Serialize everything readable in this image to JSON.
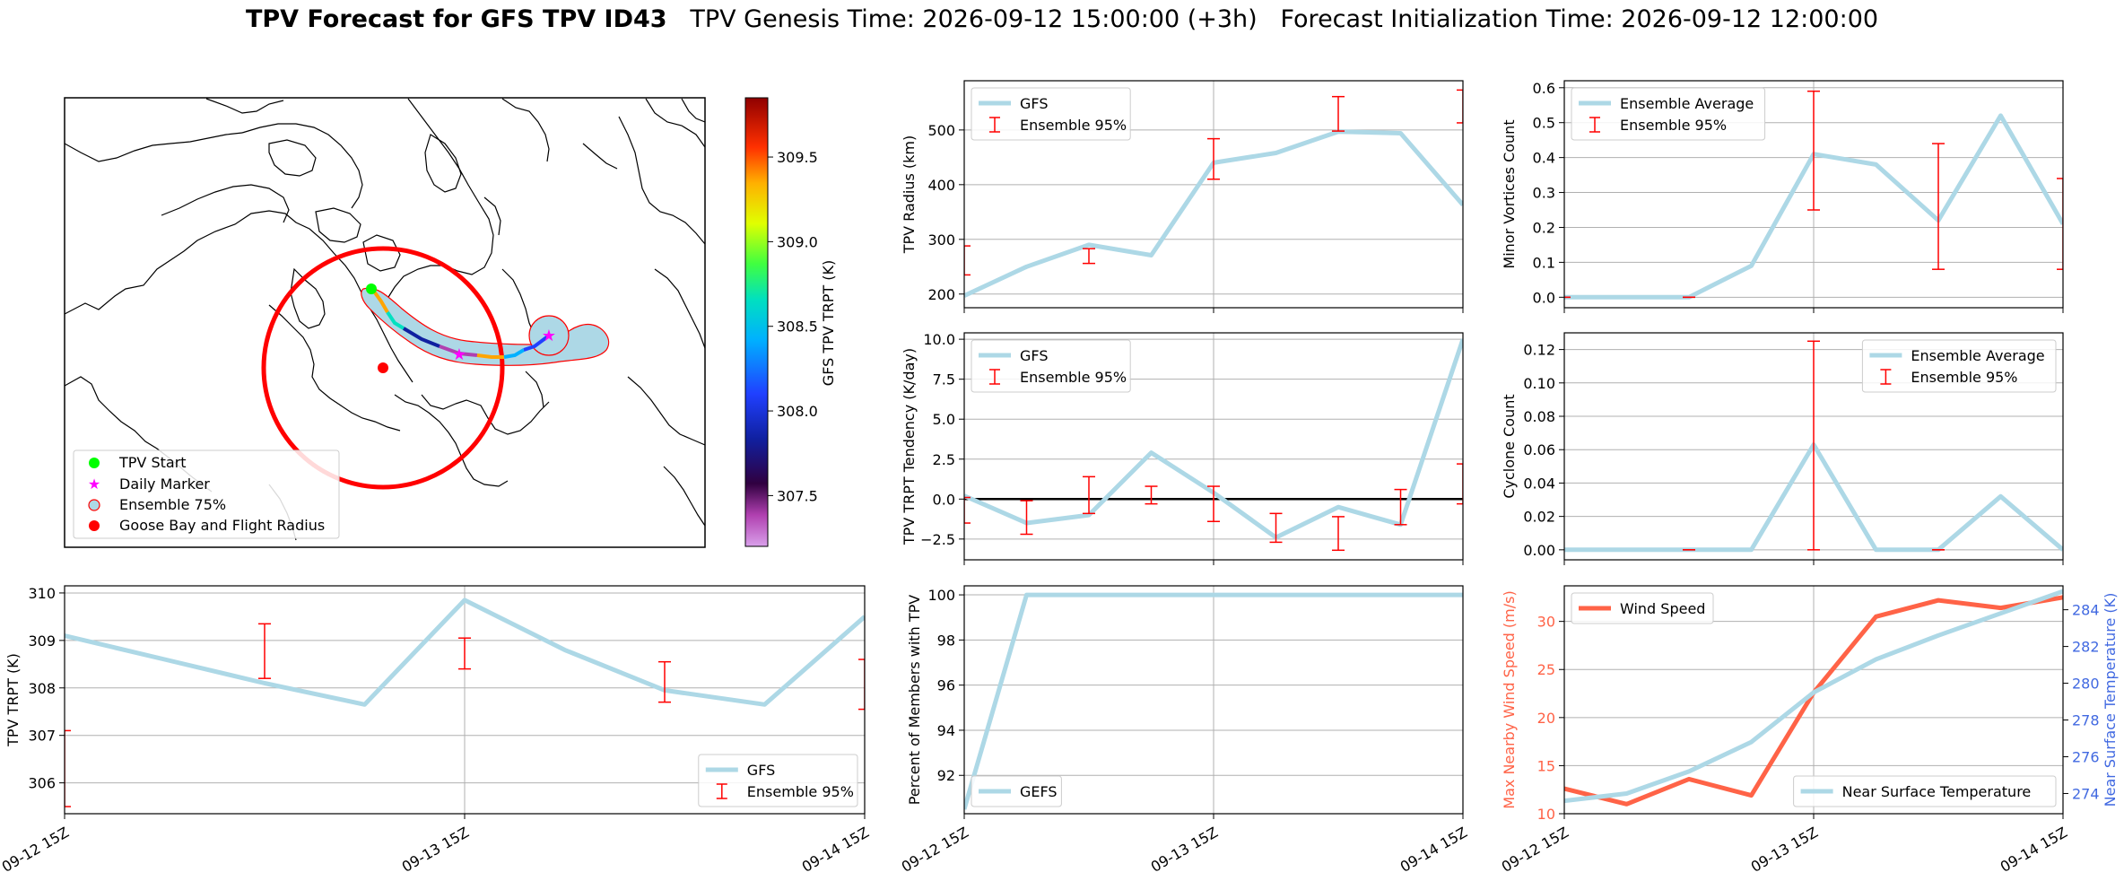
{
  "title": {
    "bold": "TPV Forecast for GFS TPV ID43",
    "genesis": "TPV Genesis Time: 2026-09-12 15:00:00 (+3h)",
    "init": "Forecast Initialization Time: 2026-09-12 12:00:00"
  },
  "colors": {
    "line": "#add8e6",
    "error": "#ff0000",
    "wind": "#ff6347",
    "temp_axis": "#4169e1",
    "grid": "#b0b0b0"
  },
  "map": {
    "colorbar_label": "GFS TPV TRPT (K)",
    "colorbar_ticks": [
      "307.5",
      "308.0",
      "308.5",
      "309.0",
      "309.5"
    ],
    "colorbar_range": [
      307.2,
      309.85
    ],
    "legend": [
      "TPV Start",
      "Daily Marker",
      "Ensemble 75%",
      "Goose Bay and Flight Radius"
    ]
  },
  "x_tick_labels": [
    "09-12 15Z",
    "09-13 15Z",
    "09-14 15Z"
  ],
  "chart_data": [
    {
      "id": "radius",
      "type": "line",
      "ylabel": "TPV Radius (km)",
      "ylim": [
        175,
        590
      ],
      "yticks": [
        200,
        300,
        400,
        500
      ],
      "legend": [
        "GFS",
        "Ensemble 95%"
      ],
      "legend_loc": "upper-left",
      "x": [
        0,
        1,
        2,
        3,
        4,
        5,
        6,
        7,
        8
      ],
      "series": [
        {
          "name": "GFS",
          "values": [
            197,
            250,
            290,
            271,
            440,
            458,
            497,
            494,
            363
          ]
        }
      ],
      "errorbars": [
        {
          "x": 0,
          "lo": 235,
          "hi": 288
        },
        {
          "x": 2,
          "lo": 256,
          "hi": 283
        },
        {
          "x": 4,
          "lo": 410,
          "hi": 484
        },
        {
          "x": 6,
          "lo": 498,
          "hi": 561
        },
        {
          "x": 8,
          "lo": 513,
          "hi": 573
        }
      ]
    },
    {
      "id": "minor",
      "type": "line",
      "ylabel": "Minor Vortices Count",
      "ylim": [
        -0.03,
        0.62
      ],
      "yticks": [
        "0.0",
        "0.1",
        "0.2",
        "0.3",
        "0.4",
        "0.5",
        "0.6"
      ],
      "legend": [
        "Ensemble Average",
        "Ensemble 95%"
      ],
      "legend_loc": "upper-left",
      "x": [
        0,
        1,
        2,
        3,
        4,
        5,
        6,
        7,
        8
      ],
      "series": [
        {
          "name": "Ensemble Average",
          "values": [
            0,
            0,
            0,
            0.09,
            0.41,
            0.38,
            0.22,
            0.52,
            0.21
          ]
        }
      ],
      "errorbars": [
        {
          "x": 0,
          "lo": 0,
          "hi": 0
        },
        {
          "x": 2,
          "lo": 0,
          "hi": 0
        },
        {
          "x": 4,
          "lo": 0.25,
          "hi": 0.59
        },
        {
          "x": 6,
          "lo": 0.08,
          "hi": 0.44
        },
        {
          "x": 8,
          "lo": 0.08,
          "hi": 0.34
        }
      ]
    },
    {
      "id": "tendency",
      "type": "line",
      "ylabel": "TPV TRPT Tendency (K/day)",
      "ylim": [
        -3.8,
        10.4
      ],
      "yticks": [
        "−2.5",
        "0.0",
        "2.5",
        "5.0",
        "7.5",
        "10.0"
      ],
      "legend": [
        "GFS",
        "Ensemble 95%"
      ],
      "legend_loc": "upper-left",
      "x": [
        0,
        1,
        2,
        3,
        4,
        5,
        6,
        7,
        8
      ],
      "series": [
        {
          "name": "GFS",
          "values": [
            0.2,
            -1.5,
            -1.0,
            2.9,
            0.4,
            -2.4,
            -0.5,
            -1.6,
            10.0
          ]
        }
      ],
      "errorbars": [
        {
          "x": 0,
          "lo": -1.5,
          "hi": 0.1
        },
        {
          "x": 1,
          "lo": -2.2,
          "hi": -0.1
        },
        {
          "x": 2,
          "lo": -0.9,
          "hi": 1.4
        },
        {
          "x": 3,
          "lo": -0.3,
          "hi": 0.8
        },
        {
          "x": 4,
          "lo": -1.4,
          "hi": 0.8
        },
        {
          "x": 5,
          "lo": -2.7,
          "hi": -0.9
        },
        {
          "x": 6,
          "lo": -3.2,
          "hi": -1.1
        },
        {
          "x": 7,
          "lo": -1.6,
          "hi": 0.6
        },
        {
          "x": 8,
          "lo": -0.3,
          "hi": 2.2
        }
      ]
    },
    {
      "id": "cyclone",
      "type": "line",
      "ylabel": "Cyclone Count",
      "ylim": [
        -0.006,
        0.13
      ],
      "yticks": [
        "0.00",
        "0.02",
        "0.04",
        "0.06",
        "0.08",
        "0.10",
        "0.12"
      ],
      "legend": [
        "Ensemble Average",
        "Ensemble 95%"
      ],
      "legend_loc": "upper-right",
      "x": [
        0,
        1,
        2,
        3,
        4,
        5,
        6,
        7,
        8
      ],
      "series": [
        {
          "name": "Ensemble Average",
          "values": [
            0,
            0,
            0,
            0,
            0.063,
            0,
            0,
            0.032,
            0
          ]
        }
      ],
      "errorbars": [
        {
          "x": 2,
          "lo": 0,
          "hi": 0
        },
        {
          "x": 4,
          "lo": 0,
          "hi": 0.125
        },
        {
          "x": 6,
          "lo": 0,
          "hi": 0
        }
      ]
    },
    {
      "id": "trpt",
      "type": "line",
      "ylabel": "TPV TRPT (K)",
      "ylim": [
        305.35,
        310.15
      ],
      "yticks": [
        306,
        307,
        308,
        309,
        310
      ],
      "legend": [
        "GFS",
        "Ensemble 95%"
      ],
      "legend_loc": "lower-right",
      "x": [
        0,
        1,
        2,
        3,
        4,
        5,
        6,
        7,
        8
      ],
      "series": [
        {
          "name": "GFS",
          "values": [
            309.1,
            308.6,
            308.1,
            307.65,
            309.85,
            308.8,
            307.95,
            307.65,
            309.5
          ]
        }
      ],
      "errorbars": [
        {
          "x": 0,
          "lo": 305.5,
          "hi": 307.1
        },
        {
          "x": 2,
          "lo": 308.2,
          "hi": 309.35
        },
        {
          "x": 4,
          "lo": 308.4,
          "hi": 309.05
        },
        {
          "x": 6,
          "lo": 307.7,
          "hi": 308.55
        },
        {
          "x": 8,
          "lo": 307.55,
          "hi": 308.6
        }
      ]
    },
    {
      "id": "percent",
      "type": "line",
      "ylabel": "Percent of Members with TPV",
      "ylim": [
        90.3,
        100.4
      ],
      "yticks": [
        92,
        94,
        96,
        98,
        100
      ],
      "legend": [
        "GEFS"
      ],
      "legend_loc": "lower-left",
      "x": [
        0,
        1,
        2,
        3,
        4,
        5,
        6,
        7,
        8
      ],
      "series": [
        {
          "name": "GEFS",
          "values": [
            90.5,
            100,
            100,
            100,
            100,
            100,
            100,
            100,
            100
          ]
        }
      ],
      "errorbars": []
    },
    {
      "id": "wind_temp",
      "type": "line",
      "ylabel": "Max Nearby Wind Speed (m/s)",
      "ylim": [
        10,
        33.7
      ],
      "yticks": [
        10,
        15,
        20,
        25,
        30
      ],
      "ylabel_right": "Near Surface Temperature (K)",
      "ylim_right": [
        272.9,
        285.3
      ],
      "yticks_right": [
        274,
        276,
        278,
        280,
        282,
        284
      ],
      "legend": [
        "Wind Speed"
      ],
      "legend_right": [
        "Near Surface Temperature"
      ],
      "x": [
        0,
        1,
        2,
        3,
        4,
        5,
        6,
        7,
        8
      ],
      "series": [
        {
          "name": "Wind Speed",
          "values": [
            12.6,
            11.0,
            13.6,
            11.9,
            22.6,
            30.5,
            32.2,
            31.4,
            32.5
          ],
          "axis": "left"
        },
        {
          "name": "Near Surface Temperature",
          "values": [
            273.6,
            274.0,
            275.2,
            276.8,
            279.5,
            281.3,
            282.6,
            283.8,
            285.0
          ],
          "axis": "right"
        }
      ],
      "errorbars": []
    }
  ]
}
